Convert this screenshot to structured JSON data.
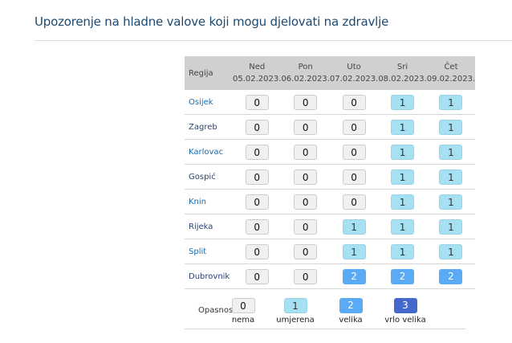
{
  "title": "Upozorenje na hladne valove koji mogu djelovati na zdravlje",
  "table": {
    "region_header": "Regija",
    "days": [
      {
        "day": "Ned",
        "date": "05.02.2023."
      },
      {
        "day": "Pon",
        "date": "06.02.2023."
      },
      {
        "day": "Uto",
        "date": "07.02.2023."
      },
      {
        "day": "Sri",
        "date": "08.02.2023."
      },
      {
        "day": "Čet",
        "date": "09.02.2023."
      }
    ],
    "rows": [
      {
        "region": "Osijek",
        "values": [
          0,
          0,
          0,
          1,
          1
        ]
      },
      {
        "region": "Zagreb",
        "values": [
          0,
          0,
          0,
          1,
          1
        ]
      },
      {
        "region": "Karlovac",
        "values": [
          0,
          0,
          0,
          1,
          1
        ]
      },
      {
        "region": "Gospić",
        "values": [
          0,
          0,
          0,
          1,
          1
        ]
      },
      {
        "region": "Knin",
        "values": [
          0,
          0,
          0,
          1,
          1
        ]
      },
      {
        "region": "Rijeka",
        "values": [
          0,
          0,
          1,
          1,
          1
        ]
      },
      {
        "region": "Split",
        "values": [
          0,
          0,
          1,
          1,
          1
        ]
      },
      {
        "region": "Dubrovnik",
        "values": [
          0,
          0,
          2,
          2,
          2
        ]
      }
    ]
  },
  "legend": {
    "label": "Opasnost:",
    "items": [
      {
        "value": "0",
        "label": "nema",
        "color": "#f0f0f0"
      },
      {
        "value": "1",
        "label": "umjerena",
        "color": "#a6e0f3"
      },
      {
        "value": "2",
        "label": "velika",
        "color": "#5aaaf5"
      },
      {
        "value": "3",
        "label": "vrlo velika",
        "color": "#4468cc"
      }
    ]
  }
}
